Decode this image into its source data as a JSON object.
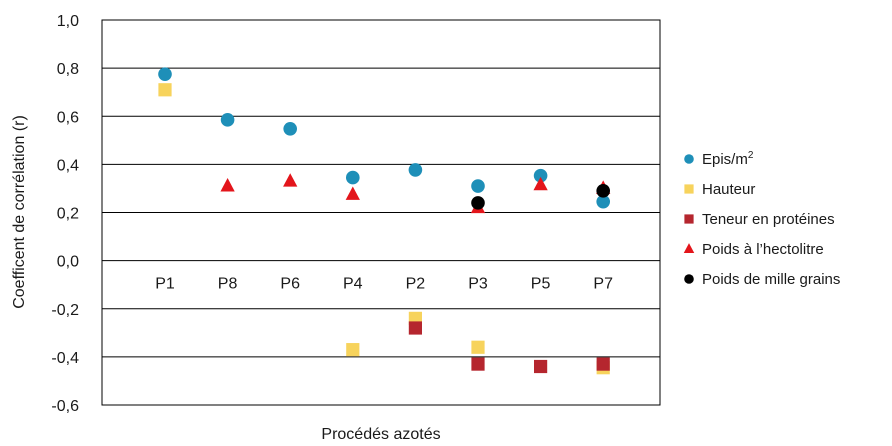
{
  "chart_data": {
    "type": "scatter",
    "title": "",
    "xlabel": "Procédés azotés",
    "ylabel": "Coefficent de corrélation (r)",
    "categories": [
      "P1",
      "P8",
      "P6",
      "P4",
      "P2",
      "P3",
      "P5",
      "P7"
    ],
    "ylim": [
      -0.6,
      1.0
    ],
    "yticks": [
      "1,0",
      "0,8",
      "0,6",
      "0,4",
      "0,2",
      "0,0",
      "-0,2",
      "-0,4",
      "-0,6"
    ],
    "grid": "horizontal",
    "legend_position": "right",
    "series": [
      {
        "name": "Epis/m",
        "name_sup": "2",
        "marker": "circle",
        "color": "#1e8fb8",
        "values": [
          0.775,
          0.585,
          0.548,
          0.345,
          0.377,
          0.31,
          0.353,
          0.245
        ]
      },
      {
        "name": "Hauteur",
        "marker": "square",
        "color": "#f7d35c",
        "values": [
          0.71,
          null,
          null,
          -0.37,
          -0.24,
          -0.36,
          null,
          -0.445
        ]
      },
      {
        "name": "Teneur en protéines",
        "marker": "square",
        "color": "#b5262e",
        "values": [
          null,
          null,
          null,
          null,
          -0.28,
          -0.43,
          -0.44,
          -0.43
        ]
      },
      {
        "name": "Poids à l’hectolitre",
        "marker": "triangle",
        "color": "#e3151b",
        "values": [
          null,
          0.31,
          0.33,
          0.275,
          null,
          0.22,
          0.315,
          0.3
        ]
      },
      {
        "name": "Poids de mille grains",
        "marker": "circle",
        "color": "#000000",
        "values": [
          null,
          null,
          null,
          null,
          null,
          0.24,
          null,
          0.29
        ]
      }
    ]
  }
}
